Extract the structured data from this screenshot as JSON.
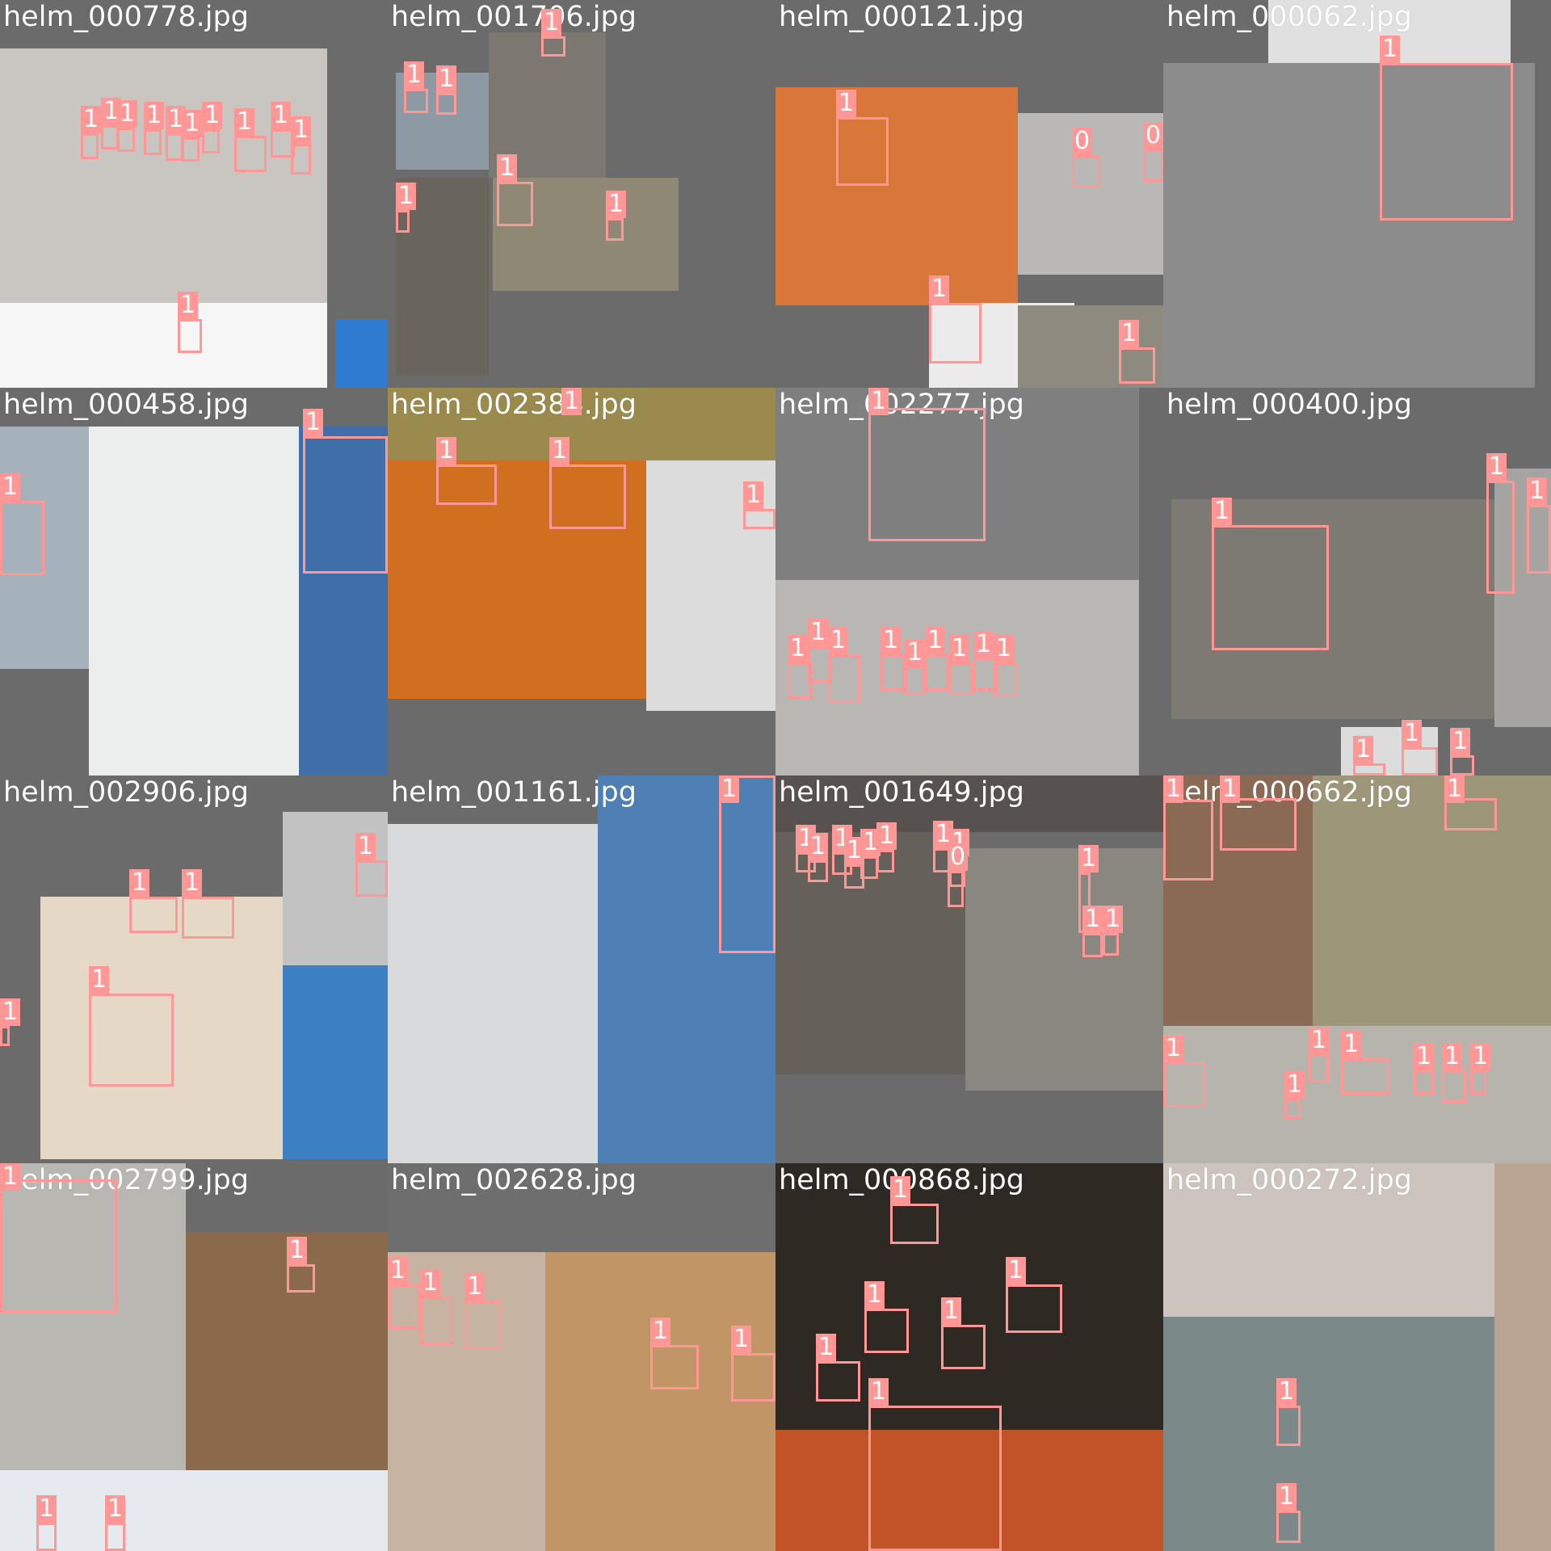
{
  "colors": {
    "box": "#ff9797",
    "label_text": "#ffffff",
    "canvas": "#6b6b6b"
  },
  "tiles": [
    {
      "filename": "helm_000778.jpg",
      "photos": [
        [
          "#c9c6c2",
          0,
          60,
          405,
          315
        ],
        [
          "#f6f6f6",
          0,
          375,
          405,
          105
        ],
        [
          "#2f7bd1",
          415,
          395,
          65,
          85
        ]
      ],
      "boxes": [
        [
          "1",
          100,
          165,
          22,
          32
        ],
        [
          "1",
          125,
          155,
          22,
          30
        ],
        [
          "1",
          145,
          158,
          22,
          30
        ],
        [
          "1",
          178,
          160,
          22,
          32
        ],
        [
          "1",
          205,
          165,
          22,
          34
        ],
        [
          "1",
          225,
          170,
          22,
          30
        ],
        [
          "1",
          250,
          160,
          22,
          30
        ],
        [
          "1",
          290,
          168,
          40,
          45
        ],
        [
          "1",
          335,
          160,
          30,
          35
        ],
        [
          "1",
          360,
          178,
          25,
          38
        ],
        [
          "1",
          220,
          395,
          30,
          42
        ]
      ]
    },
    {
      "filename": "helm_001706.jpg",
      "photos": [
        [
          "#8e9aa3",
          10,
          90,
          115,
          120
        ],
        [
          "#7c7770",
          125,
          40,
          145,
          180
        ],
        [
          "#69645c",
          10,
          220,
          115,
          245
        ],
        [
          "#8e8874",
          130,
          220,
          230,
          140
        ]
      ],
      "boxes": [
        [
          "1",
          20,
          110,
          30,
          30
        ],
        [
          "1",
          60,
          115,
          25,
          27
        ],
        [
          "1",
          190,
          45,
          30,
          25
        ],
        [
          "1",
          135,
          225,
          45,
          55
        ],
        [
          "1",
          270,
          270,
          22,
          28
        ],
        [
          "1",
          10,
          260,
          17,
          28
        ]
      ]
    },
    {
      "filename": "helm_000121.jpg",
      "photos": [
        [
          "#d9773a",
          0,
          108,
          300,
          270
        ],
        [
          "#b9b8b6",
          300,
          140,
          180,
          200
        ],
        [
          "#ebebeb",
          190,
          375,
          180,
          105
        ],
        [
          "#8f8a80",
          300,
          378,
          180,
          102
        ]
      ],
      "boxes": [
        [
          "1",
          75,
          145,
          65,
          85
        ],
        [
          "0",
          367,
          192,
          35,
          40
        ],
        [
          "0",
          455,
          185,
          25,
          40
        ],
        [
          "1",
          190,
          375,
          65,
          75
        ],
        [
          "1",
          425,
          430,
          45,
          45
        ]
      ]
    },
    {
      "filename": "helm_000062.jpg",
      "photos": [
        [
          "#8c8c8c",
          0,
          78,
          460,
          402
        ],
        [
          "#e0e0e0",
          130,
          0,
          300,
          78
        ]
      ],
      "boxes": [
        [
          "1",
          268,
          78,
          165,
          195
        ]
      ]
    },
    {
      "filename": "helm_000458.jpg",
      "photos": [
        [
          "#eceeee",
          110,
          48,
          260,
          432
        ],
        [
          "#a5b1bb",
          0,
          48,
          110,
          300
        ],
        [
          "#3f6ea8",
          370,
          48,
          110,
          432
        ]
      ],
      "boxes": [
        [
          "1",
          375,
          60,
          105,
          170
        ],
        [
          "1",
          0,
          140,
          55,
          92
        ]
      ]
    },
    {
      "filename": "helm_002384.jpg",
      "photos": [
        [
          "#d06f1f",
          0,
          90,
          320,
          295
        ],
        [
          "#dcdcdc",
          320,
          90,
          160,
          310
        ],
        [
          "#9b8a4d",
          0,
          0,
          480,
          90
        ]
      ],
      "boxes": [
        [
          "1",
          60,
          95,
          75,
          50
        ],
        [
          "1",
          200,
          95,
          95,
          80
        ],
        [
          "1",
          440,
          150,
          40,
          25
        ],
        [
          "1",
          215,
          0,
          25,
          10
        ]
      ]
    },
    {
      "filename": "helm_002277.jpg",
      "photos": [
        [
          "#7f7f80",
          0,
          0,
          450,
          238
        ],
        [
          "#b9b7b4",
          0,
          238,
          450,
          242
        ]
      ],
      "boxes": [
        [
          "1",
          115,
          25,
          145,
          165
        ],
        [
          "1",
          15,
          340,
          30,
          45
        ],
        [
          "1",
          40,
          320,
          30,
          45
        ],
        [
          "1",
          65,
          330,
          40,
          60
        ],
        [
          "1",
          130,
          330,
          30,
          45
        ],
        [
          "1",
          160,
          345,
          25,
          35
        ],
        [
          "1",
          185,
          330,
          30,
          45
        ],
        [
          "1",
          215,
          340,
          30,
          40
        ],
        [
          "1",
          245,
          335,
          30,
          40
        ],
        [
          "1",
          270,
          340,
          30,
          42
        ]
      ]
    },
    {
      "filename": "helm_000400.jpg",
      "photos": [
        [
          "#7c7a72",
          10,
          138,
          400,
          272
        ],
        [
          "#a6a4a0",
          410,
          100,
          70,
          320
        ],
        [
          "#dcdcdc",
          220,
          420,
          120,
          60
        ]
      ],
      "boxes": [
        [
          "1",
          60,
          170,
          145,
          155
        ],
        [
          "1",
          400,
          115,
          35,
          140
        ],
        [
          "1",
          450,
          145,
          30,
          85
        ],
        [
          "1",
          295,
          445,
          45,
          35
        ],
        [
          "1",
          235,
          465,
          40,
          15
        ],
        [
          "1",
          355,
          455,
          30,
          25
        ]
      ]
    },
    {
      "filename": "helm_002906.jpg",
      "photos": [
        [
          "#e6d8c7",
          50,
          150,
          300,
          325
        ],
        [
          "#c2c2c2",
          350,
          45,
          130,
          190
        ],
        [
          "#3c7fc2",
          350,
          235,
          130,
          240
        ]
      ],
      "boxes": [
        [
          "1",
          160,
          150,
          60,
          45
        ],
        [
          "1",
          225,
          150,
          65,
          52
        ],
        [
          "1",
          110,
          270,
          105,
          115
        ],
        [
          "1",
          440,
          105,
          40,
          45
        ],
        [
          "1",
          0,
          310,
          12,
          25
        ]
      ]
    },
    {
      "filename": "helm_001161.jpg",
      "photos": [
        [
          "#d9dadb",
          0,
          60,
          260,
          420
        ],
        [
          "#4f80b5",
          260,
          0,
          220,
          480
        ]
      ],
      "boxes": [
        [
          "1",
          410,
          0,
          70,
          220
        ]
      ]
    },
    {
      "filename": "helm_001649.jpg",
      "photos": [
        [
          "#66605a",
          0,
          70,
          235,
          300
        ],
        [
          "#8a8680",
          235,
          90,
          245,
          300
        ],
        [
          "#575250",
          0,
          0,
          480,
          70
        ]
      ],
      "boxes": [
        [
          "1",
          25,
          95,
          25,
          25
        ],
        [
          "1",
          40,
          105,
          25,
          27
        ],
        [
          "1",
          70,
          95,
          25,
          28
        ],
        [
          "1",
          85,
          110,
          25,
          30
        ],
        [
          "1",
          105,
          100,
          22,
          28
        ],
        [
          "1",
          125,
          92,
          22,
          28
        ],
        [
          "1",
          195,
          90,
          25,
          30
        ],
        [
          "1",
          215,
          100,
          20,
          38
        ],
        [
          "1",
          375,
          120,
          15,
          75
        ],
        [
          "1",
          380,
          195,
          25,
          30
        ],
        [
          "1",
          405,
          195,
          20,
          28
        ],
        [
          "0",
          213,
          118,
          20,
          45
        ]
      ]
    },
    {
      "filename": "helm_000662.jpg",
      "photos": [
        [
          "#8a6a55",
          0,
          0,
          185,
          310
        ],
        [
          "#9e9678",
          185,
          0,
          295,
          310
        ],
        [
          "#b7b4ad",
          0,
          310,
          480,
          170
        ]
      ],
      "boxes": [
        [
          "1",
          70,
          28,
          95,
          65
        ],
        [
          "1",
          0,
          30,
          62,
          100
        ],
        [
          "1",
          348,
          28,
          65,
          40
        ],
        [
          "1",
          0,
          355,
          52,
          55
        ],
        [
          "1",
          180,
          345,
          25,
          35
        ],
        [
          "1",
          220,
          350,
          60,
          45
        ],
        [
          "1",
          310,
          365,
          25,
          30
        ],
        [
          "1",
          345,
          365,
          30,
          40
        ],
        [
          "1",
          380,
          365,
          20,
          30
        ],
        [
          "1",
          150,
          400,
          20,
          25
        ]
      ]
    },
    {
      "filename": "helm_002799.jpg",
      "photos": [
        [
          "#b9b7b1",
          0,
          0,
          230,
          380
        ],
        [
          "#8b6a4c",
          230,
          85,
          250,
          300
        ],
        [
          "#e6e9ed",
          0,
          380,
          480,
          100
        ]
      ],
      "boxes": [
        [
          "1",
          0,
          20,
          145,
          165
        ],
        [
          "1",
          355,
          125,
          35,
          35
        ],
        [
          "1",
          45,
          445,
          25,
          35
        ],
        [
          "1",
          130,
          445,
          25,
          35
        ]
      ]
    },
    {
      "filename": "helm_002628.jpg",
      "photos": [
        [
          "#c6b3a2",
          0,
          110,
          195,
          370
        ],
        [
          "#c19565",
          195,
          110,
          285,
          370
        ],
        [
          "#6e6e6e",
          0,
          0,
          480,
          110
        ]
      ],
      "boxes": [
        [
          "1",
          0,
          150,
          40,
          55
        ],
        [
          "1",
          40,
          165,
          40,
          60
        ],
        [
          "1",
          95,
          170,
          45,
          60
        ],
        [
          "1",
          325,
          225,
          60,
          55
        ],
        [
          "1",
          425,
          235,
          55,
          60
        ]
      ]
    },
    {
      "filename": "helm_000868.jpg",
      "photos": [
        [
          "#2f2924",
          0,
          0,
          480,
          330
        ],
        [
          "#c05426",
          0,
          330,
          480,
          150
        ]
      ],
      "boxes": [
        [
          "1",
          142,
          50,
          60,
          50
        ],
        [
          "1",
          110,
          180,
          55,
          55
        ],
        [
          "1",
          285,
          150,
          70,
          60
        ],
        [
          "1",
          205,
          200,
          55,
          55
        ],
        [
          "1",
          50,
          245,
          55,
          50
        ],
        [
          "1",
          115,
          300,
          165,
          180
        ]
      ]
    },
    {
      "filename": "helm_000272.jpg",
      "photos": [
        [
          "#cdc5bd",
          0,
          0,
          410,
          190
        ],
        [
          "#7b8a88",
          0,
          190,
          410,
          290
        ],
        [
          "#b9a393",
          410,
          0,
          70,
          480
        ]
      ],
      "boxes": [
        [
          "1",
          140,
          300,
          30,
          50
        ],
        [
          "1",
          140,
          430,
          30,
          40
        ]
      ]
    }
  ]
}
